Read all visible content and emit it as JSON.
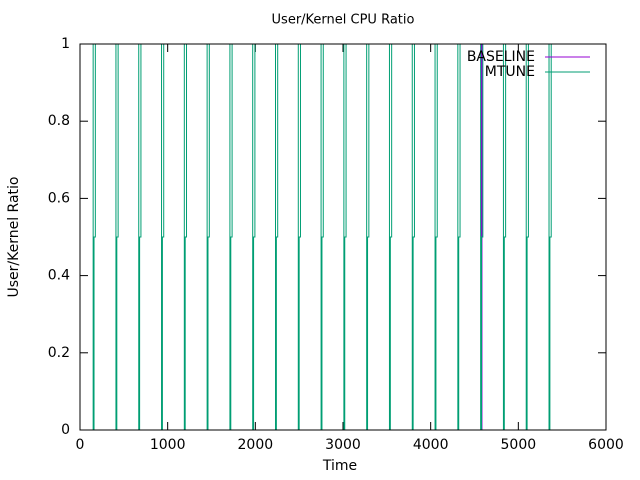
{
  "chart_data": {
    "type": "line",
    "title": "User/Kernel CPU Ratio",
    "xlabel": "Time",
    "ylabel": "User/Kernel Ratio",
    "xlim": [
      0,
      6000
    ],
    "xticks": [
      0,
      1000,
      2000,
      3000,
      4000,
      5000,
      6000
    ],
    "ylim": [
      0,
      1
    ],
    "yticks": [
      0,
      0.2,
      0.4,
      0.6,
      0.8,
      1
    ],
    "legend": "upper right",
    "series": [
      {
        "name": "BASELINE",
        "color": "#9400d3",
        "x": [
          0,
          4575,
          4575,
          4585,
          4585,
          5800
        ],
        "values": [
          1,
          1,
          0,
          0,
          1,
          1
        ]
      },
      {
        "name": "MTUNE",
        "color": "#009e73",
        "x": [
          150,
          150,
          160,
          160,
          175,
          175,
          410,
          410,
          420,
          420,
          435,
          435,
          670,
          670,
          680,
          680,
          695,
          695,
          930,
          930,
          940,
          940,
          955,
          955,
          1190,
          1190,
          1200,
          1200,
          1215,
          1215,
          1450,
          1450,
          1460,
          1460,
          1475,
          1475,
          1710,
          1710,
          1720,
          1720,
          1735,
          1735,
          1970,
          1970,
          1980,
          1980,
          1995,
          1995,
          2230,
          2230,
          2240,
          2240,
          2255,
          2255,
          2490,
          2490,
          2500,
          2500,
          2515,
          2515,
          2750,
          2750,
          2760,
          2760,
          2775,
          2775,
          3010,
          3010,
          3020,
          3020,
          3035,
          3035,
          3270,
          3270,
          3280,
          3280,
          3295,
          3295,
          3530,
          3530,
          3540,
          3540,
          3555,
          3555,
          3790,
          3790,
          3800,
          3800,
          3815,
          3815,
          4050,
          4050,
          4060,
          4060,
          4075,
          4075,
          4310,
          4310,
          4320,
          4320,
          4335,
          4335,
          4570,
          4570,
          4580,
          4580,
          4595,
          4595,
          4830,
          4830,
          4840,
          4840,
          4855,
          4855,
          5090,
          5090,
          5100,
          5100,
          5115,
          5115,
          5350,
          5350,
          5360,
          5360,
          5375,
          5375
        ],
        "values": [
          1,
          0,
          0,
          0.5,
          0.5,
          1,
          1,
          0,
          0,
          0.5,
          0.5,
          1,
          1,
          0,
          0,
          0.5,
          0.5,
          1,
          1,
          0,
          0,
          0.5,
          0.5,
          1,
          1,
          0,
          0,
          0.5,
          0.5,
          1,
          1,
          0,
          0,
          0.5,
          0.5,
          1,
          1,
          0,
          0,
          0.5,
          0.5,
          1,
          1,
          0,
          0,
          0.5,
          0.5,
          1,
          1,
          0,
          0,
          0.5,
          0.5,
          1,
          1,
          0,
          0,
          0.5,
          0.5,
          1,
          1,
          0,
          0,
          0.5,
          0.5,
          1,
          1,
          0,
          0,
          0.5,
          0.5,
          1,
          1,
          0,
          0,
          0.5,
          0.5,
          1,
          1,
          0,
          0,
          0.5,
          0.5,
          1,
          1,
          0,
          0,
          0.5,
          0.5,
          1,
          1,
          0,
          0,
          0.5,
          0.5,
          1,
          1,
          0,
          0,
          0.5,
          0.5,
          1,
          1,
          0,
          0,
          0.5,
          0.5,
          1,
          1,
          0,
          0,
          0.5,
          0.5,
          1,
          1,
          0,
          0,
          0.5,
          0.5,
          1,
          1,
          0,
          0,
          0.5,
          0.5,
          1
        ]
      }
    ]
  }
}
